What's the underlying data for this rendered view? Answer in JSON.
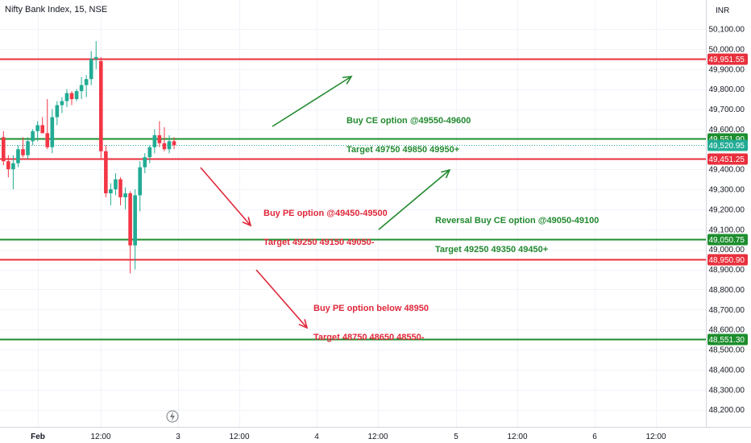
{
  "header": {
    "title": "Nifty Bank Index, 15, NSE",
    "currency": "INR"
  },
  "colors": {
    "up": "#22ab94",
    "down": "#f23645",
    "green_line": "#1e8e2e",
    "red_line": "#e8303d",
    "green_text": "#22892f",
    "red_text": "#e0283a"
  },
  "price_axis": {
    "ticks": [
      {
        "label": "50,100.00",
        "v": 50100
      },
      {
        "label": "50,000.00",
        "v": 50000
      },
      {
        "label": "49,900.00",
        "v": 49900
      },
      {
        "label": "49,800.00",
        "v": 49800
      },
      {
        "label": "49,700.00",
        "v": 49700
      },
      {
        "label": "49,600.00",
        "v": 49600
      },
      {
        "label": "49,400.00",
        "v": 49400
      },
      {
        "label": "49,300.00",
        "v": 49300
      },
      {
        "label": "49,200.00",
        "v": 49200
      },
      {
        "label": "49,100.00",
        "v": 49100
      },
      {
        "label": "49,000.00",
        "v": 49000
      },
      {
        "label": "48,900.00",
        "v": 48900
      },
      {
        "label": "48,800.00",
        "v": 48800
      },
      {
        "label": "48,700.00",
        "v": 48700
      },
      {
        "label": "48,600.00",
        "v": 48600
      },
      {
        "label": "48,500.00",
        "v": 48500
      },
      {
        "label": "48,400.00",
        "v": 48400
      },
      {
        "label": "48,300.00",
        "v": 48300
      },
      {
        "label": "48,200.00",
        "v": 48200
      }
    ]
  },
  "time_axis": {
    "ticks": [
      {
        "label": "Feb",
        "bold": true
      },
      {
        "label": "12:00"
      },
      {
        "label": "3"
      },
      {
        "label": "12:00"
      },
      {
        "label": "4"
      },
      {
        "label": "12:00"
      },
      {
        "label": "5"
      },
      {
        "label": "12:00"
      },
      {
        "label": "6"
      },
      {
        "label": "12:00"
      }
    ]
  },
  "levels": [
    {
      "v": 49951.55,
      "label": "49,951.55",
      "color": "red"
    },
    {
      "v": 49551.9,
      "label": "49,551.90",
      "color": "green"
    },
    {
      "v": 49451.25,
      "label": "49,451.25",
      "color": "red"
    },
    {
      "v": 49050.75,
      "label": "49,050.75",
      "color": "green"
    },
    {
      "v": 48950.9,
      "label": "48,950.90",
      "color": "red"
    },
    {
      "v": 48551.3,
      "label": "48,551.30",
      "color": "green"
    }
  ],
  "last_price": {
    "v": 49520.95,
    "label": "49,520.95"
  },
  "annotations": [
    {
      "lines": [
        "Buy CE option @49550-49600",
        "Target 49750 49850 49950+"
      ],
      "color": "green"
    },
    {
      "lines": [
        "Buy PE option @49450-49500",
        "Target 49250 49150 49050-"
      ],
      "color": "red"
    },
    {
      "lines": [
        "Reversal Buy CE option @49050-49100",
        "Target 49250 49350 49450+"
      ],
      "color": "green"
    },
    {
      "lines": [
        "Buy PE option below 48950",
        "Target 48750 48650 48550-"
      ],
      "color": "red"
    }
  ],
  "candles": [
    {
      "o": 49560,
      "h": 49590,
      "l": 49420,
      "c": 49440
    },
    {
      "o": 49440,
      "h": 49470,
      "l": 49360,
      "c": 49400
    },
    {
      "o": 49400,
      "h": 49470,
      "l": 49300,
      "c": 49430
    },
    {
      "o": 49430,
      "h": 49520,
      "l": 49410,
      "c": 49500
    },
    {
      "o": 49500,
      "h": 49560,
      "l": 49460,
      "c": 49470
    },
    {
      "o": 49470,
      "h": 49560,
      "l": 49450,
      "c": 49540
    },
    {
      "o": 49540,
      "h": 49600,
      "l": 49520,
      "c": 49590
    },
    {
      "o": 49590,
      "h": 49640,
      "l": 49540,
      "c": 49620
    },
    {
      "o": 49620,
      "h": 49660,
      "l": 49580,
      "c": 49580
    },
    {
      "o": 49580,
      "h": 49750,
      "l": 49500,
      "c": 49510
    },
    {
      "o": 49510,
      "h": 49700,
      "l": 49480,
      "c": 49660
    },
    {
      "o": 49660,
      "h": 49740,
      "l": 49620,
      "c": 49720
    },
    {
      "o": 49720,
      "h": 49760,
      "l": 49680,
      "c": 49740
    },
    {
      "o": 49740,
      "h": 49800,
      "l": 49710,
      "c": 49780
    },
    {
      "o": 49780,
      "h": 49790,
      "l": 49720,
      "c": 49750
    },
    {
      "o": 49750,
      "h": 49800,
      "l": 49740,
      "c": 49790
    },
    {
      "o": 49790,
      "h": 49860,
      "l": 49750,
      "c": 49820
    },
    {
      "o": 49820,
      "h": 49870,
      "l": 49760,
      "c": 49850
    },
    {
      "o": 49850,
      "h": 49990,
      "l": 49820,
      "c": 49950
    },
    {
      "o": 49950,
      "h": 50040,
      "l": 49900,
      "c": 49960
    },
    {
      "o": 49940,
      "h": 49960,
      "l": 49450,
      "c": 49490
    },
    {
      "o": 49490,
      "h": 49520,
      "l": 49260,
      "c": 49280
    },
    {
      "o": 49280,
      "h": 49330,
      "l": 49220,
      "c": 49300
    },
    {
      "o": 49300,
      "h": 49380,
      "l": 49270,
      "c": 49350
    },
    {
      "o": 49350,
      "h": 49360,
      "l": 49220,
      "c": 49260
    },
    {
      "o": 49260,
      "h": 49310,
      "l": 49200,
      "c": 49280
    },
    {
      "o": 49280,
      "h": 49290,
      "l": 48880,
      "c": 49020
    },
    {
      "o": 49020,
      "h": 49300,
      "l": 48900,
      "c": 49270
    },
    {
      "o": 49270,
      "h": 49440,
      "l": 49190,
      "c": 49410
    },
    {
      "o": 49410,
      "h": 49480,
      "l": 49380,
      "c": 49460
    },
    {
      "o": 49460,
      "h": 49520,
      "l": 49430,
      "c": 49510
    },
    {
      "o": 49510,
      "h": 49600,
      "l": 49480,
      "c": 49570
    },
    {
      "o": 49570,
      "h": 49640,
      "l": 49510,
      "c": 49530
    },
    {
      "o": 49530,
      "h": 49610,
      "l": 49490,
      "c": 49500
    },
    {
      "o": 49500,
      "h": 49570,
      "l": 49480,
      "c": 49540
    },
    {
      "o": 49540,
      "h": 49560,
      "l": 49500,
      "c": 49520
    }
  ]
}
